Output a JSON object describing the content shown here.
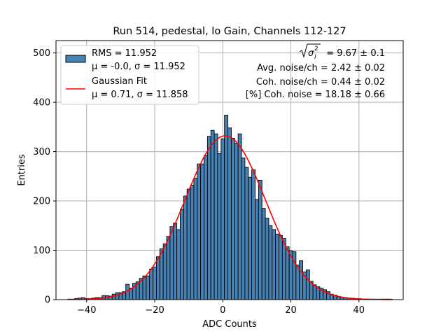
{
  "chart_data": {
    "type": "bar",
    "title": "Run 514, pedestal, lo Gain, Channels 112-127",
    "xlabel": "ADC Counts",
    "ylabel": "Entries",
    "xlim": [
      -49,
      53
    ],
    "ylim": [
      0,
      525
    ],
    "xticks": [
      -40,
      -20,
      0,
      20,
      40
    ],
    "yticks": [
      0,
      100,
      200,
      300,
      400,
      500
    ],
    "xtick_labels": [
      "−40",
      "−20",
      "0",
      "20",
      "40"
    ],
    "ytick_labels": [
      "0",
      "100",
      "200",
      "300",
      "400",
      "500"
    ],
    "grid": true,
    "legend_position": "top-left",
    "bin_width": 1,
    "bins": [
      [
        -45,
        1
      ],
      [
        -44,
        1
      ],
      [
        -43,
        2
      ],
      [
        -42,
        3
      ],
      [
        -41,
        4
      ],
      [
        -40,
        2
      ],
      [
        -39,
        2
      ],
      [
        -38,
        3
      ],
      [
        -37,
        4
      ],
      [
        -36,
        4
      ],
      [
        -35,
        8
      ],
      [
        -34,
        8
      ],
      [
        -33,
        7
      ],
      [
        -32,
        11
      ],
      [
        -31,
        14
      ],
      [
        -30,
        14
      ],
      [
        -29,
        16
      ],
      [
        -28,
        31
      ],
      [
        -27,
        23
      ],
      [
        -26,
        33
      ],
      [
        -25,
        36
      ],
      [
        -24,
        43
      ],
      [
        -23,
        48
      ],
      [
        -22,
        48
      ],
      [
        -21,
        62
      ],
      [
        -20,
        66
      ],
      [
        -19,
        87
      ],
      [
        -18,
        103
      ],
      [
        -17,
        113
      ],
      [
        -16,
        128
      ],
      [
        -15,
        148
      ],
      [
        -14,
        155
      ],
      [
        -13,
        142
      ],
      [
        -12,
        183
      ],
      [
        -11,
        210
      ],
      [
        -10,
        224
      ],
      [
        -9,
        232
      ],
      [
        -8,
        246
      ],
      [
        -7,
        275
      ],
      [
        -6,
        275
      ],
      [
        -5,
        292
      ],
      [
        -4,
        331
      ],
      [
        -3,
        343
      ],
      [
        -2,
        336
      ],
      [
        -1,
        296
      ],
      [
        0,
        326
      ],
      [
        1,
        374
      ],
      [
        2,
        348
      ],
      [
        3,
        327
      ],
      [
        4,
        317
      ],
      [
        5,
        336
      ],
      [
        6,
        287
      ],
      [
        7,
        268
      ],
      [
        8,
        248
      ],
      [
        9,
        263
      ],
      [
        10,
        203
      ],
      [
        11,
        242
      ],
      [
        12,
        185
      ],
      [
        13,
        165
      ],
      [
        14,
        150
      ],
      [
        15,
        142
      ],
      [
        16,
        133
      ],
      [
        17,
        130
      ],
      [
        18,
        124
      ],
      [
        19,
        107
      ],
      [
        20,
        99
      ],
      [
        21,
        97
      ],
      [
        22,
        70
      ],
      [
        23,
        79
      ],
      [
        24,
        56
      ],
      [
        25,
        60
      ],
      [
        26,
        37
      ],
      [
        27,
        30
      ],
      [
        28,
        26
      ],
      [
        29,
        23
      ],
      [
        30,
        20
      ],
      [
        31,
        16
      ],
      [
        32,
        11
      ],
      [
        33,
        9
      ],
      [
        34,
        6
      ],
      [
        35,
        5
      ],
      [
        36,
        4
      ],
      [
        37,
        3
      ],
      [
        38,
        3
      ],
      [
        39,
        2
      ],
      [
        40,
        2
      ],
      [
        41,
        1
      ],
      [
        42,
        1
      ],
      [
        43,
        1
      ],
      [
        44,
        1
      ],
      [
        45,
        1
      ],
      [
        46,
        1
      ],
      [
        47,
        1
      ],
      [
        48,
        1
      ],
      [
        49,
        1
      ]
    ],
    "fit": {
      "mu": 0.71,
      "sigma": 11.858,
      "amplitude": 332,
      "x_range": [
        -45,
        50
      ]
    },
    "legend": [
      {
        "label": "RMS = 11.952",
        "label2": "μ = -0.0, σ = 11.952",
        "color": "#4682b4",
        "kind": "patch"
      },
      {
        "label": "Gaussian Fit",
        "label2": "μ = 0.71, σ = 11.858",
        "color": "#ff0000",
        "kind": "line"
      }
    ],
    "annotations": {
      "sigma_total_value": " = 9.67 ± 0.1",
      "avg_noise": "Avg. noise/ch = 2.42 ± 0.02",
      "coh_noise": "Coh. noise/ch = 0.44 ± 0.02",
      "pct_coh_noise": "[%] Coh. noise = 18.18 ± 0.66"
    },
    "colors": {
      "bar_fill": "#4682b4",
      "bar_edge": "#000000",
      "fit_line": "#ff0000",
      "grid": "#b0b0b0"
    }
  }
}
